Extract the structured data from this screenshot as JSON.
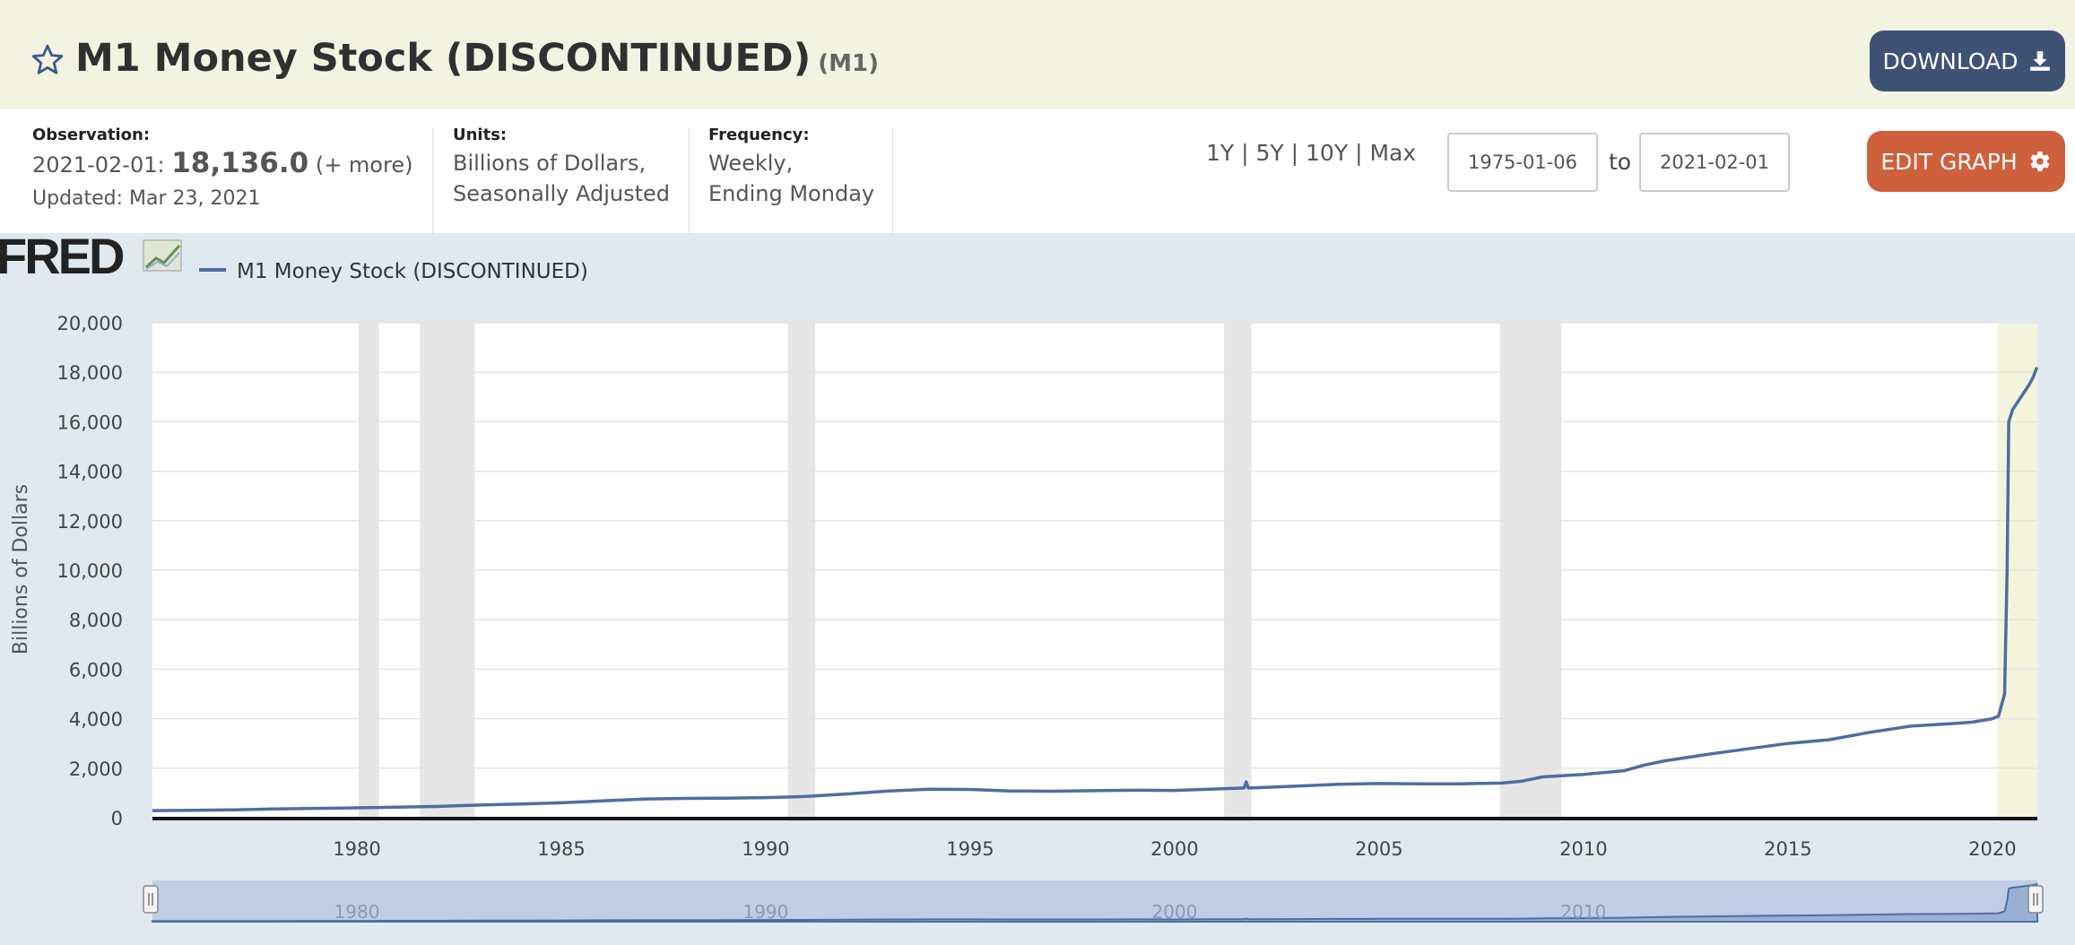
{
  "header": {
    "title": "M1 Money Stock (DISCONTINUED)",
    "series_id": "(M1)",
    "download_label": "DOWNLOAD",
    "bg_color": "#f2f3e1"
  },
  "observation": {
    "label": "Observation:",
    "date": "2021-02-01:",
    "value": "18,136.0",
    "more": "(+ more)",
    "updated": "Updated: Mar 23, 2021"
  },
  "units": {
    "label": "Units:",
    "line1": "Billions of Dollars,",
    "line2": "Seasonally Adjusted"
  },
  "frequency": {
    "label": "Frequency:",
    "line1": "Weekly,",
    "line2": "Ending Monday"
  },
  "range_buttons": [
    "1Y",
    "5Y",
    "10Y",
    "Max"
  ],
  "date_range": {
    "start": "1975-01-06",
    "to_label": "to",
    "end": "2021-02-01"
  },
  "edit_graph_label": "EDIT GRAPH",
  "colors": {
    "download_button": "#3e5275",
    "edit_button": "#cf603d",
    "series_line": "#4c6ea3",
    "recession_shade": "#e6e6e6",
    "latest_period_shade": "#f4f4dc",
    "navigator_fill": "#c1cde5"
  },
  "chart_data": {
    "type": "line",
    "logo_text": "FRED",
    "series": [
      {
        "name": "M1 Money Stock (DISCONTINUED)",
        "x": [
          1975.0,
          1976.0,
          1977.0,
          1978.0,
          1979.0,
          1980.0,
          1981.0,
          1982.0,
          1983.0,
          1984.0,
          1985.0,
          1986.0,
          1987.0,
          1988.0,
          1989.0,
          1990.0,
          1991.0,
          1992.0,
          1993.0,
          1994.0,
          1995.0,
          1996.0,
          1997.0,
          1998.0,
          1999.0,
          2000.0,
          2001.0,
          2001.7,
          2001.75,
          2001.8,
          2002.0,
          2003.0,
          2004.0,
          2005.0,
          2006.0,
          2007.0,
          2008.0,
          2008.5,
          2009.0,
          2010.0,
          2011.0,
          2011.5,
          2012.0,
          2013.0,
          2014.0,
          2015.0,
          2016.0,
          2017.0,
          2018.0,
          2019.0,
          2019.5,
          2020.0,
          2020.15,
          2020.3,
          2020.36,
          2020.4,
          2020.5,
          2020.7,
          2020.9,
          2021.0,
          2021.09
        ],
        "values": [
          285,
          300,
          320,
          350,
          375,
          400,
          425,
          455,
          510,
          550,
          600,
          680,
          750,
          780,
          790,
          810,
          860,
          960,
          1080,
          1150,
          1140,
          1080,
          1070,
          1090,
          1110,
          1100,
          1160,
          1200,
          1450,
          1200,
          1210,
          1280,
          1350,
          1380,
          1370,
          1370,
          1400,
          1480,
          1650,
          1750,
          1900,
          2130,
          2300,
          2550,
          2780,
          3000,
          3150,
          3450,
          3700,
          3800,
          3860,
          4000,
          4100,
          5000,
          10000,
          16000,
          16500,
          17000,
          17500,
          17800,
          18200
        ]
      }
    ],
    "ylabel": "Billions of Dollars",
    "ylim": [
      0,
      20000
    ],
    "yticks": [
      0,
      2000,
      4000,
      6000,
      8000,
      10000,
      12000,
      14000,
      16000,
      18000,
      20000
    ],
    "ytick_labels": [
      "0",
      "2,000",
      "4,000",
      "6,000",
      "8,000",
      "10,000",
      "12,000",
      "14,000",
      "16,000",
      "18,000",
      "20,000"
    ],
    "xlim": [
      1975.0,
      2021.1
    ],
    "xticks": [
      1980,
      1985,
      1990,
      1995,
      2000,
      2005,
      2010,
      2015,
      2020
    ],
    "xtick_labels": [
      "1980",
      "1985",
      "1990",
      "1995",
      "2000",
      "2005",
      "2010",
      "2015",
      "2020"
    ],
    "navigator_ticks": [
      "1980",
      "1990",
      "2000",
      "2010"
    ],
    "recessions": [
      [
        1980.04,
        1980.54
      ],
      [
        1981.54,
        1982.88
      ],
      [
        1990.54,
        1991.21
      ],
      [
        2001.21,
        2001.88
      ],
      [
        2007.96,
        2009.46
      ]
    ],
    "latest_period": [
      2020.12,
      2021.1
    ],
    "grid": true
  }
}
